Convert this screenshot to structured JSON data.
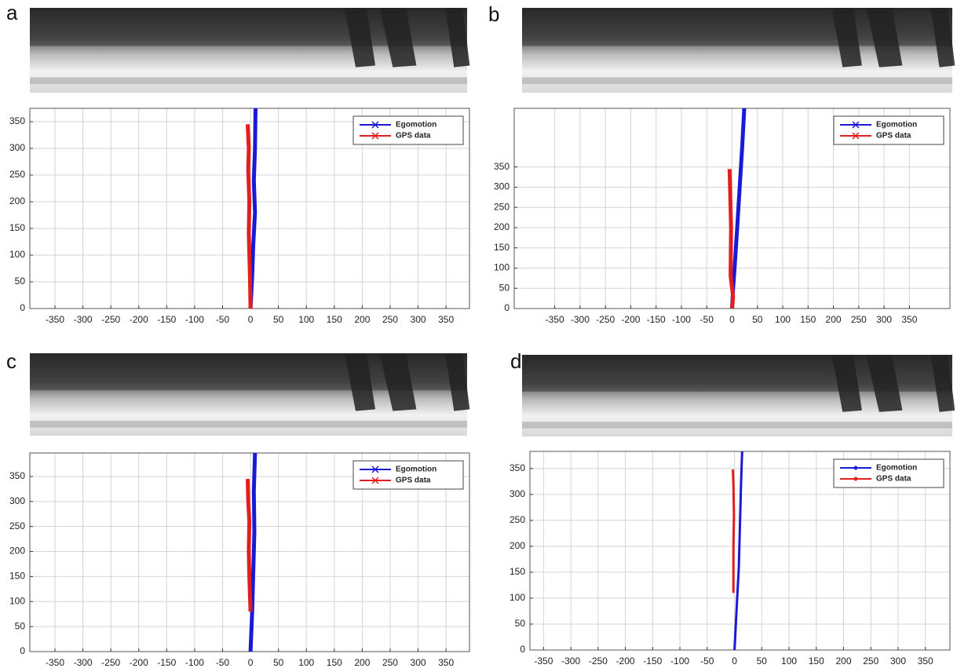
{
  "chart_data": [
    {
      "type": "line",
      "panel_label": "a",
      "xlim": [
        -395,
        392
      ],
      "ylim": [
        0,
        375
      ],
      "xticks": [
        -350,
        -300,
        -250,
        -200,
        -150,
        -100,
        -50,
        0,
        50,
        100,
        150,
        200,
        250,
        300,
        350
      ],
      "yticks": [
        0,
        50,
        100,
        150,
        200,
        250,
        300,
        350
      ],
      "grid": true,
      "legend": "upper right",
      "series": [
        {
          "name": "Egomotion",
          "color": "#1a1ad6",
          "marker": "x",
          "x": [
            0,
            3,
            5,
            8,
            6,
            8,
            9
          ],
          "values": [
            0,
            60,
            120,
            180,
            240,
            300,
            375
          ]
        },
        {
          "name": "GPS data",
          "color": "#e21e1e",
          "marker": "x",
          "x": [
            0,
            -1,
            -3,
            -2,
            -4,
            -3,
            -5
          ],
          "values": [
            0,
            60,
            140,
            200,
            260,
            300,
            345
          ]
        }
      ]
    },
    {
      "type": "line",
      "panel_label": "b",
      "xlim": [
        -430,
        430
      ],
      "ylim": [
        0,
        495
      ],
      "xticks": [
        -350,
        -300,
        -250,
        -200,
        -150,
        -100,
        -50,
        0,
        50,
        100,
        150,
        200,
        250,
        300,
        350
      ],
      "yticks": [
        0,
        50,
        100,
        150,
        200,
        250,
        300,
        350
      ],
      "grid": true,
      "legend": "upper right",
      "series": [
        {
          "name": "Egomotion",
          "color": "#1a1ad6",
          "marker": "x",
          "x": [
            0,
            2,
            5,
            10,
            15,
            20,
            24
          ],
          "values": [
            0,
            50,
            100,
            200,
            300,
            400,
            495
          ]
        },
        {
          "name": "GPS data",
          "color": "#e21e1e",
          "marker": "x",
          "x": [
            0,
            2,
            -3,
            -2,
            -4,
            -5
          ],
          "values": [
            0,
            30,
            80,
            200,
            300,
            345
          ]
        }
      ]
    },
    {
      "type": "line",
      "panel_label": "c",
      "xlim": [
        -395,
        392
      ],
      "ylim": [
        0,
        397
      ],
      "xticks": [
        -350,
        -300,
        -250,
        -200,
        -150,
        -100,
        -50,
        0,
        50,
        100,
        150,
        200,
        250,
        300,
        350
      ],
      "yticks": [
        0,
        50,
        100,
        150,
        200,
        250,
        300,
        350
      ],
      "grid": true,
      "legend": "upper right",
      "series": [
        {
          "name": "Egomotion",
          "color": "#1a1ad6",
          "marker": "x",
          "x": [
            0,
            3,
            5,
            7,
            6,
            8
          ],
          "values": [
            0,
            80,
            160,
            240,
            320,
            397
          ]
        },
        {
          "name": "GPS data",
          "color": "#e21e1e",
          "marker": "x",
          "x": [
            0,
            -2,
            -3,
            -2,
            -4,
            -5
          ],
          "values": [
            80,
            150,
            200,
            260,
            300,
            345
          ]
        }
      ]
    },
    {
      "type": "line",
      "panel_label": "d",
      "xlim": [
        -375,
        395
      ],
      "ylim": [
        0,
        383
      ],
      "xticks": [
        -350,
        -300,
        -250,
        -200,
        -150,
        -100,
        -50,
        0,
        50,
        100,
        150,
        200,
        250,
        300,
        350
      ],
      "yticks": [
        0,
        50,
        100,
        150,
        200,
        250,
        300,
        350
      ],
      "grid": true,
      "legend": "upper right",
      "series": [
        {
          "name": "Egomotion",
          "color": "#1a1ad6",
          "marker": "dot",
          "x": [
            0,
            4,
            8,
            10,
            12,
            14
          ],
          "values": [
            0,
            80,
            160,
            240,
            320,
            383
          ]
        },
        {
          "name": "GPS data",
          "color": "#e21e1e",
          "marker": "dot",
          "x": [
            -2,
            -2,
            -1,
            -2,
            -3
          ],
          "values": [
            110,
            200,
            260,
            320,
            348
          ]
        }
      ]
    }
  ]
}
